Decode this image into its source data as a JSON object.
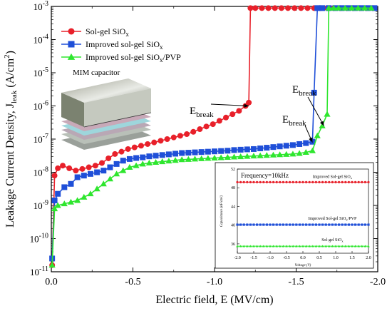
{
  "chart_data": {
    "type": "line",
    "xlabel": "Electric field, E (MV/cm)",
    "ylabel": "Leakage Current Density, J",
    "ylabel_sub": "leak",
    "ylabel_unit": " (A/cm",
    "ylabel_unit_sup": "2",
    "ylabel_unit_end": ")",
    "xlim": [
      0,
      -2.0
    ],
    "ylim_log10": [
      -11,
      -3
    ],
    "y_scale": "log",
    "x_ticks": [
      {
        "value": 0,
        "label": "0.0"
      },
      {
        "value": -0.5,
        "label": "-0.5"
      },
      {
        "value": -1.0,
        "label": "-1.0"
      },
      {
        "value": -1.5,
        "label": "-1.5"
      },
      {
        "value": -2.0,
        "label": "-2.0"
      }
    ],
    "y_ticks": [
      {
        "exp": -11,
        "base": "10",
        "sup": "-11"
      },
      {
        "exp": -10,
        "base": "10",
        "sup": "-10"
      },
      {
        "exp": -9,
        "base": "10",
        "sup": "-9"
      },
      {
        "exp": -8,
        "base": "10",
        "sup": "-8"
      },
      {
        "exp": -7,
        "base": "10",
        "sup": "-7"
      },
      {
        "exp": -6,
        "base": "10",
        "sup": "-6"
      },
      {
        "exp": -5,
        "base": "10",
        "sup": "-5"
      },
      {
        "exp": -4,
        "base": "10",
        "sup": "-4"
      },
      {
        "exp": -3,
        "base": "10",
        "sup": "-3"
      }
    ],
    "legend_position": "top-left",
    "series": [
      {
        "name": "Sol-gel SiO",
        "name_sub": "x",
        "color": "#e8202a",
        "marker": "circle",
        "x": [
          -0.005,
          -0.02,
          -0.04,
          -0.07,
          -0.11,
          -0.15,
          -0.19,
          -0.23,
          -0.27,
          -0.31,
          -0.35,
          -0.39,
          -0.43,
          -0.47,
          -0.51,
          -0.55,
          -0.59,
          -0.63,
          -0.67,
          -0.71,
          -0.75,
          -0.79,
          -0.83,
          -0.87,
          -0.91,
          -0.95,
          -0.99,
          -1.03,
          -1.07,
          -1.11,
          -1.15,
          -1.19,
          -1.21,
          -1.22,
          -1.25,
          -1.29,
          -1.33,
          -1.37,
          -1.41,
          -1.45,
          -1.49,
          -1.53,
          -1.57,
          -1.61,
          -1.65,
          -1.69,
          -1.73,
          -1.77,
          -1.81,
          -1.85,
          -1.89,
          -1.93,
          -1.97
        ],
        "y_log10": [
          -10.8,
          -8.1,
          -7.88,
          -7.8,
          -7.88,
          -7.95,
          -7.9,
          -7.85,
          -7.8,
          -7.72,
          -7.58,
          -7.45,
          -7.38,
          -7.3,
          -7.25,
          -7.2,
          -7.15,
          -7.1,
          -7.05,
          -7.0,
          -6.95,
          -6.9,
          -6.85,
          -6.78,
          -6.7,
          -6.62,
          -6.55,
          -6.45,
          -6.35,
          -6.25,
          -6.15,
          -6.0,
          -5.9,
          -3.05,
          -3.05,
          -3.05,
          -3.05,
          -3.05,
          -3.05,
          -3.05,
          -3.05,
          -3.05,
          -3.05,
          -3.05,
          -3.05,
          -3.05,
          -3.05,
          -3.05,
          -3.05,
          -3.05,
          -3.05,
          -3.05,
          -3.05
        ]
      },
      {
        "name": "Improved sol-gel SiO",
        "name_sub": "x",
        "color": "#1f4fd8",
        "marker": "square",
        "x": [
          -0.005,
          -0.02,
          -0.04,
          -0.08,
          -0.12,
          -0.16,
          -0.2,
          -0.24,
          -0.28,
          -0.32,
          -0.36,
          -0.4,
          -0.44,
          -0.48,
          -0.52,
          -0.56,
          -0.6,
          -0.64,
          -0.68,
          -0.72,
          -0.76,
          -0.8,
          -0.84,
          -0.88,
          -0.92,
          -0.96,
          -1.0,
          -1.04,
          -1.08,
          -1.12,
          -1.16,
          -1.2,
          -1.24,
          -1.28,
          -1.32,
          -1.36,
          -1.4,
          -1.44,
          -1.48,
          -1.52,
          -1.56,
          -1.6,
          -1.61,
          -1.63,
          -1.66,
          -1.7,
          -1.74,
          -1.78,
          -1.82,
          -1.86,
          -1.9,
          -1.94,
          -1.98
        ],
        "y_log10": [
          -10.6,
          -8.85,
          -8.65,
          -8.45,
          -8.35,
          -8.15,
          -8.1,
          -8.05,
          -8.0,
          -7.95,
          -7.85,
          -7.75,
          -7.65,
          -7.6,
          -7.57,
          -7.55,
          -7.52,
          -7.5,
          -7.48,
          -7.46,
          -7.44,
          -7.42,
          -7.41,
          -7.4,
          -7.39,
          -7.38,
          -7.37,
          -7.36,
          -7.35,
          -7.33,
          -7.32,
          -7.31,
          -7.3,
          -7.28,
          -7.26,
          -7.24,
          -7.22,
          -7.2,
          -7.18,
          -7.15,
          -7.12,
          -7.08,
          -5.6,
          -3.05,
          -3.05,
          -3.05,
          -3.05,
          -3.05,
          -3.05,
          -3.05,
          -3.05,
          -3.05,
          -3.05
        ]
      },
      {
        "name": "Improved sol-gel SiO",
        "name_sub": "x",
        "name_suffix": "/PVP",
        "color": "#2ee62e",
        "marker": "triangle",
        "x": [
          -0.005,
          -0.02,
          -0.04,
          -0.08,
          -0.12,
          -0.16,
          -0.2,
          -0.24,
          -0.28,
          -0.32,
          -0.36,
          -0.4,
          -0.44,
          -0.48,
          -0.52,
          -0.56,
          -0.6,
          -0.64,
          -0.68,
          -0.72,
          -0.76,
          -0.8,
          -0.84,
          -0.88,
          -0.92,
          -0.96,
          -1.0,
          -1.04,
          -1.08,
          -1.12,
          -1.16,
          -1.2,
          -1.24,
          -1.28,
          -1.32,
          -1.36,
          -1.4,
          -1.44,
          -1.48,
          -1.52,
          -1.56,
          -1.6,
          -1.63,
          -1.66,
          -1.69,
          -1.7,
          -1.73,
          -1.76,
          -1.8,
          -1.84,
          -1.88,
          -1.92,
          -1.96
        ],
        "y_log10": [
          -10.8,
          -9.1,
          -9.0,
          -8.95,
          -8.9,
          -8.85,
          -8.75,
          -8.65,
          -8.5,
          -8.35,
          -8.2,
          -8.05,
          -7.95,
          -7.85,
          -7.8,
          -7.75,
          -7.72,
          -7.7,
          -7.68,
          -7.66,
          -7.64,
          -7.62,
          -7.61,
          -7.6,
          -7.59,
          -7.58,
          -7.57,
          -7.56,
          -7.55,
          -7.54,
          -7.53,
          -7.52,
          -7.51,
          -7.5,
          -7.49,
          -7.48,
          -7.47,
          -7.46,
          -7.45,
          -7.43,
          -7.4,
          -7.35,
          -6.9,
          -6.6,
          -6.25,
          -3.05,
          -3.05,
          -3.05,
          -3.05,
          -3.05,
          -3.05,
          -3.05,
          -3.05
        ]
      }
    ],
    "annotations": [
      {
        "base": "E",
        "sub": "break",
        "target_x": -1.21,
        "target_y_log10": -6.0
      },
      {
        "base": "E",
        "sub": "break",
        "target_x": -1.67,
        "target_y_log10": -6.6
      },
      {
        "base": "E",
        "sub": "break",
        "target_x": -1.6,
        "target_y_log10": -7.1
      }
    ],
    "inset_image_label": "MIM capacitor",
    "inset_chart": {
      "type": "line",
      "title": "Frequency=10kHz",
      "xlabel": "Voltage (V)",
      "ylabel": "Capacitance (nF/cm²)",
      "xlim": [
        -2.0,
        2.0
      ],
      "ylim": [
        34,
        52
      ],
      "x_ticks": [
        -2.0,
        -1.5,
        -1.0,
        -0.5,
        0.0,
        0.5,
        1.0,
        1.5,
        2.0
      ],
      "x_tick_labels": [
        "-2.0",
        "-1.5",
        "-1.0",
        "-0.5",
        "0.0",
        "0.5",
        "1.0",
        "1.5",
        "2.0"
      ],
      "y_ticks": [
        36,
        40,
        44,
        48,
        52
      ],
      "y_tick_labels": [
        "36",
        "40",
        "44",
        "48",
        "52"
      ],
      "series": [
        {
          "label": "Improved Sol-gel SiO",
          "label_sub": "x",
          "color": "#e8202a",
          "marker": "circle",
          "value": 49.2
        },
        {
          "label": "Improved Sol-gel SiO",
          "label_sub": "x",
          "label_suffix": "/PVP",
          "color": "#1f4fd8",
          "marker": "square",
          "value": 40.1
        },
        {
          "label": "Sol-gel SiO",
          "label_sub": "x",
          "color": "#2ee62e",
          "marker": "triangle",
          "value": 35.5
        }
      ]
    }
  }
}
